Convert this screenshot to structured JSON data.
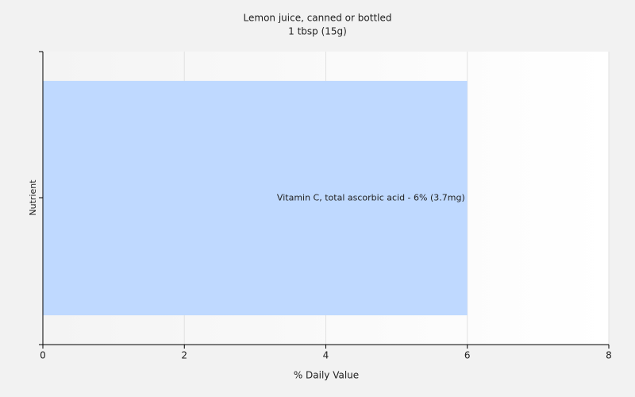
{
  "chart_data": {
    "type": "bar",
    "orientation": "horizontal",
    "title": "Lemon juice, canned or bottled",
    "subtitle": "1 tbsp (15g)",
    "x_label": "% Daily Value",
    "y_label": "Nutrient",
    "categories": [
      null
    ],
    "values": [
      6
    ],
    "value_labels": [
      "Vitamin C, total ascorbic acid - 6% (3.7mg)"
    ],
    "color": "#bfd9ff",
    "xlim": [
      0,
      8
    ],
    "xticks": [
      0,
      2,
      4,
      6,
      8
    ],
    "grid": true
  }
}
